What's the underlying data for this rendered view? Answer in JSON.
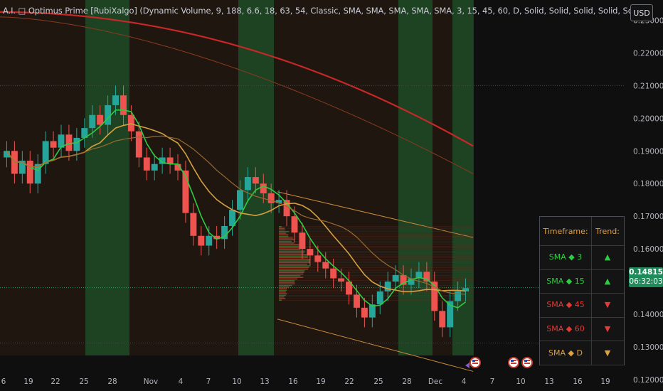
{
  "legend": "A.I. □ Optimus Prime [RubiXalgo] (Dynamic Volume, 9, 188, 6.6, 18, 63, 54, Classic, SMA, SMA, SMA, SMA, SMA, 3, 15, 45, 60, D, Solid, Solid, Solid, Solid, Solid)",
  "currency_button": "USD",
  "last_price": "0.14815",
  "countdown": "06:32:03",
  "colors": {
    "up": "#26a69a",
    "down": "#ef5350",
    "bull_zone": "#1c7a3a",
    "bear_zone": "#6b3a1c",
    "accent": "#e0a040"
  },
  "table": {
    "header": {
      "timeframe": "Timeframe:",
      "trend": "Trend:"
    },
    "rows": [
      {
        "ma": "SMA",
        "dot": "◆",
        "period": "3",
        "color": "#2ecc40",
        "trend_icon": "arrow-up-icon"
      },
      {
        "ma": "SMA",
        "dot": "◆",
        "period": "15",
        "color": "#2ecc40",
        "trend_icon": "arrow-up-icon"
      },
      {
        "ma": "SMA",
        "dot": "◆",
        "period": "45",
        "color": "#e53935",
        "trend_icon": "arrow-down-icon"
      },
      {
        "ma": "SMA",
        "dot": "◆",
        "period": "60",
        "color": "#e53935",
        "trend_icon": "arrow-down-icon"
      },
      {
        "ma": "SMA",
        "dot": "◆",
        "period": "D",
        "color": "#e0a040",
        "trend_icon": "arrow-down-icon"
      }
    ]
  },
  "chart_data": {
    "type": "candlestick",
    "ylim": [
      0.1165,
      0.2362
    ],
    "y_ticks": [
      "0.23000",
      "0.22000",
      "0.21000",
      "0.20000",
      "0.19000",
      "0.18000",
      "0.17000",
      "0.16000",
      "0.15000",
      "0.14000",
      "0.13000",
      "0.12000"
    ],
    "x_ticks": [
      "6",
      "19",
      "22",
      "25",
      "28",
      "Nov",
      "4",
      "7",
      "10",
      "13",
      "16",
      "19",
      "22",
      "25",
      "28",
      "Dec",
      "4",
      "7",
      "10",
      "13",
      "16",
      "19"
    ],
    "candles_close": [
      0.19,
      0.183,
      0.187,
      0.18,
      0.186,
      0.193,
      0.191,
      0.195,
      0.19,
      0.194,
      0.197,
      0.201,
      0.198,
      0.204,
      0.207,
      0.201,
      0.196,
      0.188,
      0.184,
      0.186,
      0.188,
      0.186,
      0.184,
      0.171,
      0.164,
      0.161,
      0.164,
      0.163,
      0.167,
      0.172,
      0.178,
      0.182,
      0.18,
      0.177,
      0.174,
      0.175,
      0.17,
      0.165,
      0.16,
      0.158,
      0.156,
      0.154,
      0.151,
      0.15,
      0.146,
      0.142,
      0.139,
      0.143,
      0.147,
      0.15,
      0.152,
      0.149,
      0.151,
      0.153,
      0.15,
      0.141,
      0.136,
      0.144,
      0.147,
      0.148
    ]
  }
}
